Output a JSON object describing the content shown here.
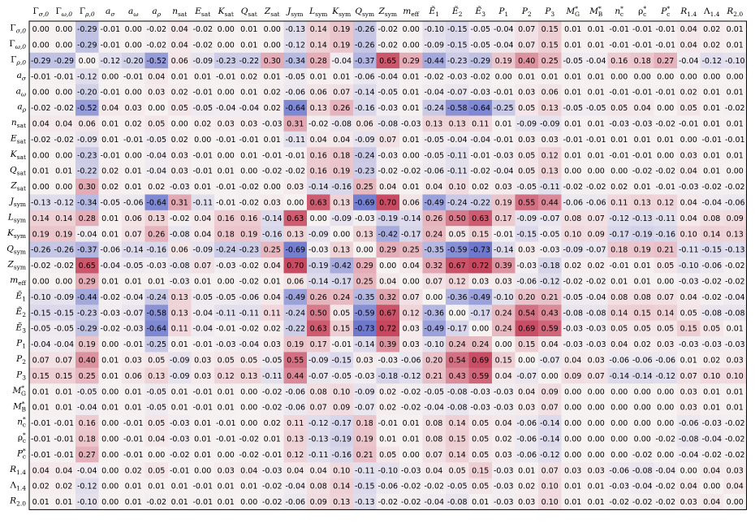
{
  "chart_data": {
    "type": "heatmap",
    "title": "",
    "xlabel": "",
    "ylabel": "",
    "colormap": {
      "negative": "#3b4cc0",
      "zero": "#f7f2f2",
      "positive": "#b40426"
    },
    "value_range": [
      -1,
      1
    ],
    "labels": [
      {
        "base": "Γ",
        "sub": "σ,0"
      },
      {
        "base": "Γ",
        "sub": "ω,0"
      },
      {
        "base": "Γ",
        "sub": "ρ,0"
      },
      {
        "base": "a",
        "sub": "σ"
      },
      {
        "base": "a",
        "sub": "ω"
      },
      {
        "base": "a",
        "sub": "ρ"
      },
      {
        "base": "n",
        "sub": "sat"
      },
      {
        "base": "E",
        "sub": "sat"
      },
      {
        "base": "K",
        "sub": "sat"
      },
      {
        "base": "Q",
        "sub": "sat"
      },
      {
        "base": "Z",
        "sub": "sat"
      },
      {
        "base": "J",
        "sub": "sym"
      },
      {
        "base": "L",
        "sub": "sym"
      },
      {
        "base": "K",
        "sub": "sym"
      },
      {
        "base": "Q",
        "sub": "sym"
      },
      {
        "base": "Z",
        "sub": "sym"
      },
      {
        "base": "m",
        "sub": "eff"
      },
      {
        "base": "Ẽ",
        "sub": "1"
      },
      {
        "base": "Ẽ",
        "sub": "2"
      },
      {
        "base": "Ẽ",
        "sub": "3"
      },
      {
        "base": "P",
        "sub": "1"
      },
      {
        "base": "P",
        "sub": "2"
      },
      {
        "base": "P",
        "sub": "3"
      },
      {
        "base": "M",
        "sub": "G",
        "sup": "*"
      },
      {
        "base": "M",
        "sub": "B",
        "sup": "*"
      },
      {
        "base": "n",
        "sub": "c",
        "sup": "*"
      },
      {
        "base": "ρ",
        "sub": "c",
        "sup": "*"
      },
      {
        "base": "P",
        "sub": "c",
        "sup": "*"
      },
      {
        "base": "R",
        "sub": "1.4"
      },
      {
        "base": "Λ",
        "sub": "1.4"
      },
      {
        "base": "R",
        "sub": "2.0"
      }
    ],
    "matrix": [
      [
        0.0,
        -0.0,
        -0.29,
        -0.01,
        -0.0,
        -0.02,
        0.04,
        -0.02,
        0.0,
        0.01,
        -0.0,
        -0.13,
        0.14,
        0.19,
        -0.26,
        -0.02,
        -0.0,
        -0.1,
        -0.15,
        -0.05,
        -0.04,
        0.07,
        0.15,
        0.01,
        0.01,
        -0.01,
        -0.01,
        -0.01,
        0.04,
        0.02,
        0.01
      ],
      [
        -0.0,
        0.0,
        -0.29,
        -0.01,
        -0.0,
        -0.02,
        0.04,
        -0.02,
        0.0,
        0.01,
        -0.0,
        -0.12,
        0.14,
        0.19,
        -0.26,
        -0.02,
        -0.0,
        -0.09,
        -0.15,
        -0.05,
        -0.04,
        0.07,
        0.15,
        0.01,
        0.01,
        -0.01,
        -0.01,
        -0.01,
        0.04,
        0.02,
        0.01
      ],
      [
        -0.29,
        -0.29,
        0.0,
        -0.12,
        -0.2,
        -0.52,
        0.06,
        -0.09,
        -0.23,
        -0.22,
        0.3,
        -0.34,
        0.28,
        -0.04,
        -0.37,
        0.65,
        0.29,
        -0.44,
        -0.23,
        -0.29,
        0.19,
        0.4,
        0.25,
        -0.05,
        -0.04,
        0.16,
        0.18,
        0.27,
        -0.04,
        -0.12,
        -0.1
      ],
      [
        -0.01,
        -0.01,
        -0.12,
        0.0,
        -0.01,
        0.04,
        0.01,
        0.01,
        -0.01,
        0.02,
        0.01,
        -0.05,
        0.01,
        0.01,
        -0.06,
        -0.04,
        0.01,
        -0.02,
        -0.03,
        -0.02,
        0.0,
        0.01,
        0.01,
        0.01,
        0.01,
        -0.0,
        -0.0,
        -0.0,
        0.0,
        0.0,
        0.0
      ],
      [
        -0.0,
        -0.0,
        -0.2,
        -0.01,
        0.0,
        0.03,
        0.02,
        -0.01,
        -0.0,
        0.01,
        0.02,
        -0.06,
        0.06,
        0.07,
        -0.14,
        -0.05,
        0.01,
        -0.04,
        -0.07,
        -0.03,
        -0.01,
        0.03,
        0.06,
        0.01,
        0.01,
        -0.01,
        -0.01,
        -0.01,
        0.02,
        0.01,
        0.01
      ],
      [
        -0.02,
        -0.02,
        -0.52,
        0.04,
        0.03,
        0.0,
        0.05,
        -0.05,
        -0.04,
        -0.04,
        0.02,
        -0.64,
        0.13,
        0.26,
        -0.16,
        -0.03,
        0.01,
        -0.24,
        -0.58,
        -0.64,
        -0.25,
        0.05,
        0.13,
        -0.05,
        -0.05,
        0.05,
        0.04,
        -0.0,
        0.05,
        0.01,
        -0.02
      ],
      [
        0.04,
        0.04,
        0.06,
        0.01,
        0.02,
        0.05,
        0.0,
        0.02,
        0.03,
        0.03,
        -0.03,
        0.31,
        -0.02,
        -0.08,
        0.06,
        -0.08,
        -0.03,
        0.13,
        0.13,
        0.11,
        0.01,
        -0.09,
        -0.09,
        0.01,
        0.01,
        -0.03,
        -0.03,
        -0.02,
        -0.01,
        0.01,
        0.01
      ],
      [
        -0.02,
        -0.02,
        -0.09,
        0.01,
        -0.01,
        -0.05,
        0.02,
        0.0,
        -0.01,
        -0.01,
        0.01,
        -0.11,
        0.04,
        0.04,
        -0.09,
        0.07,
        0.01,
        -0.05,
        -0.04,
        -0.04,
        -0.01,
        0.03,
        0.03,
        -0.01,
        -0.01,
        0.01,
        0.01,
        0.01,
        -0.0,
        -0.01,
        -0.01
      ],
      [
        0.0,
        0.0,
        -0.23,
        -0.01,
        -0.0,
        -0.04,
        0.03,
        -0.01,
        0.0,
        0.01,
        -0.01,
        -0.01,
        0.16,
        0.18,
        -0.24,
        -0.03,
        -0.0,
        -0.05,
        -0.11,
        -0.01,
        -0.03,
        0.05,
        0.12,
        0.01,
        0.01,
        -0.01,
        -0.01,
        -0.0,
        0.03,
        0.01,
        0.01
      ],
      [
        0.01,
        0.01,
        -0.22,
        0.02,
        0.01,
        -0.04,
        0.03,
        -0.01,
        0.01,
        0.0,
        -0.02,
        -0.02,
        0.16,
        0.19,
        -0.23,
        -0.02,
        -0.02,
        -0.06,
        -0.11,
        -0.02,
        -0.04,
        0.05,
        0.13,
        0.0,
        0.0,
        -0.0,
        -0.02,
        -0.02,
        0.04,
        0.01,
        -0.0
      ],
      [
        -0.0,
        -0.0,
        0.3,
        0.02,
        0.01,
        0.02,
        -0.03,
        0.01,
        -0.01,
        -0.02,
        0.0,
        0.03,
        -0.14,
        -0.16,
        0.25,
        0.04,
        0.01,
        0.04,
        0.1,
        0.02,
        0.03,
        -0.05,
        -0.11,
        -0.02,
        -0.02,
        0.02,
        0.01,
        -0.01,
        -0.03,
        -0.02,
        -0.02
      ],
      [
        -0.13,
        -0.12,
        -0.34,
        -0.05,
        -0.06,
        -0.64,
        0.31,
        -0.11,
        -0.01,
        -0.02,
        0.03,
        0.0,
        0.63,
        0.13,
        -0.69,
        0.7,
        0.06,
        -0.49,
        -0.24,
        -0.22,
        0.19,
        0.55,
        0.44,
        -0.06,
        -0.06,
        0.11,
        0.13,
        0.12,
        0.04,
        -0.04,
        -0.06
      ],
      [
        0.14,
        0.14,
        0.28,
        0.01,
        0.06,
        0.13,
        -0.02,
        0.04,
        0.16,
        0.16,
        -0.14,
        0.63,
        0.0,
        -0.09,
        -0.03,
        -0.19,
        -0.14,
        0.26,
        0.5,
        0.63,
        0.17,
        -0.09,
        -0.07,
        0.08,
        0.07,
        -0.12,
        -0.13,
        -0.11,
        0.04,
        0.08,
        0.09
      ],
      [
        0.19,
        0.19,
        -0.04,
        0.01,
        0.07,
        0.26,
        -0.08,
        0.04,
        0.18,
        0.19,
        -0.16,
        0.13,
        -0.09,
        0.0,
        0.13,
        -0.42,
        -0.17,
        0.24,
        0.05,
        0.15,
        -0.01,
        -0.15,
        -0.05,
        0.1,
        0.09,
        -0.17,
        -0.19,
        -0.16,
        0.1,
        0.14,
        0.13
      ],
      [
        -0.26,
        -0.26,
        -0.37,
        -0.06,
        -0.14,
        -0.16,
        0.06,
        -0.09,
        -0.24,
        -0.23,
        0.25,
        -0.69,
        -0.03,
        0.13,
        0.0,
        0.29,
        0.25,
        -0.35,
        -0.59,
        -0.73,
        -0.14,
        0.03,
        -0.03,
        -0.09,
        -0.07,
        0.18,
        0.19,
        0.21,
        -0.11,
        -0.15,
        -0.13
      ],
      [
        -0.02,
        -0.02,
        0.65,
        -0.04,
        -0.05,
        -0.03,
        -0.08,
        0.07,
        -0.03,
        -0.02,
        0.04,
        0.7,
        -0.19,
        -0.42,
        0.29,
        0.0,
        0.04,
        0.32,
        0.67,
        0.72,
        0.39,
        -0.03,
        -0.18,
        0.02,
        0.02,
        -0.01,
        0.01,
        0.05,
        -0.1,
        -0.06,
        -0.02
      ],
      [
        -0.0,
        -0.0,
        0.29,
        0.01,
        0.01,
        0.01,
        -0.03,
        0.01,
        -0.0,
        -0.02,
        0.01,
        0.06,
        -0.14,
        -0.17,
        0.25,
        0.04,
        0.0,
        0.07,
        0.12,
        0.03,
        0.03,
        -0.06,
        -0.12,
        -0.02,
        -0.02,
        0.01,
        0.01,
        -0.0,
        -0.03,
        -0.02,
        -0.02
      ],
      [
        -0.1,
        -0.09,
        -0.44,
        -0.02,
        -0.04,
        -0.24,
        0.13,
        -0.05,
        -0.05,
        -0.06,
        0.04,
        -0.49,
        0.26,
        0.24,
        -0.35,
        0.32,
        0.07,
        0.0,
        -0.36,
        -0.49,
        -0.1,
        0.2,
        0.21,
        -0.05,
        -0.04,
        0.08,
        0.08,
        0.07,
        0.04,
        -0.02,
        -0.04
      ],
      [
        -0.15,
        -0.15,
        -0.23,
        -0.03,
        -0.07,
        -0.58,
        0.13,
        -0.04,
        -0.11,
        -0.11,
        0.11,
        -0.24,
        0.5,
        0.05,
        -0.59,
        0.67,
        0.12,
        -0.36,
        0.0,
        -0.17,
        0.24,
        0.54,
        0.43,
        -0.08,
        -0.08,
        0.14,
        0.15,
        0.14,
        0.05,
        -0.08,
        -0.08
      ],
      [
        -0.05,
        -0.05,
        -0.29,
        -0.02,
        -0.03,
        -0.64,
        0.11,
        -0.04,
        -0.01,
        -0.02,
        0.02,
        -0.22,
        0.63,
        0.15,
        -0.73,
        0.72,
        0.03,
        -0.49,
        -0.17,
        0.0,
        0.24,
        0.69,
        0.59,
        -0.03,
        -0.03,
        0.05,
        0.05,
        0.05,
        0.15,
        0.05,
        0.01
      ],
      [
        -0.04,
        -0.04,
        0.19,
        0.0,
        -0.01,
        -0.25,
        0.01,
        -0.01,
        -0.03,
        -0.04,
        0.03,
        0.19,
        0.17,
        -0.01,
        -0.14,
        0.39,
        0.03,
        -0.1,
        0.24,
        0.24,
        0.0,
        0.15,
        0.04,
        -0.03,
        -0.03,
        0.04,
        0.02,
        0.03,
        -0.03,
        -0.03,
        -0.03
      ],
      [
        0.07,
        0.07,
        0.4,
        0.01,
        0.03,
        0.05,
        -0.09,
        0.03,
        0.05,
        0.05,
        -0.05,
        0.55,
        -0.09,
        -0.15,
        0.03,
        -0.03,
        -0.06,
        0.2,
        0.54,
        0.69,
        0.15,
        0.0,
        -0.07,
        0.04,
        0.03,
        -0.06,
        -0.06,
        -0.06,
        0.01,
        0.02,
        0.03
      ],
      [
        0.15,
        0.15,
        0.25,
        0.01,
        0.06,
        0.13,
        -0.09,
        0.03,
        0.12,
        0.13,
        -0.11,
        0.44,
        -0.07,
        -0.05,
        -0.03,
        -0.18,
        -0.12,
        0.21,
        0.43,
        0.59,
        0.04,
        -0.07,
        0.0,
        0.09,
        0.07,
        -0.14,
        -0.14,
        -0.12,
        0.07,
        0.1,
        0.1
      ],
      [
        0.01,
        0.01,
        -0.05,
        0.0,
        0.01,
        -0.05,
        0.01,
        -0.01,
        0.01,
        0.0,
        -0.02,
        -0.06,
        0.08,
        0.1,
        -0.09,
        0.02,
        -0.02,
        -0.05,
        -0.08,
        -0.03,
        -0.03,
        0.04,
        0.09,
        0.0,
        -0.0,
        -0.0,
        -0.0,
        -0.0,
        0.03,
        0.01,
        0.01
      ],
      [
        0.01,
        0.01,
        -0.04,
        0.01,
        0.01,
        -0.05,
        0.01,
        -0.01,
        0.01,
        0.0,
        -0.02,
        -0.06,
        0.07,
        0.09,
        -0.07,
        0.02,
        -0.02,
        -0.04,
        -0.08,
        -0.03,
        -0.03,
        0.03,
        0.07,
        -0.0,
        0.0,
        -0.0,
        -0.0,
        -0.0,
        0.03,
        0.01,
        0.01
      ],
      [
        -0.01,
        -0.01,
        0.16,
        -0.0,
        -0.01,
        0.05,
        -0.03,
        0.01,
        -0.01,
        -0.0,
        0.02,
        0.11,
        -0.12,
        -0.17,
        0.18,
        -0.01,
        0.01,
        0.08,
        0.14,
        0.05,
        0.04,
        -0.06,
        -0.14,
        -0.0,
        -0.0,
        0.0,
        -0.0,
        -0.0,
        -0.06,
        -0.03,
        -0.02
      ],
      [
        -0.01,
        -0.01,
        0.18,
        -0.0,
        -0.01,
        0.04,
        -0.03,
        0.01,
        -0.01,
        -0.02,
        0.01,
        0.13,
        -0.13,
        -0.19,
        0.19,
        0.01,
        0.01,
        0.08,
        0.15,
        0.05,
        0.02,
        -0.06,
        -0.14,
        -0.0,
        -0.0,
        -0.0,
        0.0,
        -0.02,
        -0.08,
        -0.04,
        -0.02
      ],
      [
        -0.01,
        -0.01,
        0.27,
        -0.0,
        -0.01,
        -0.0,
        -0.02,
        0.01,
        -0.0,
        -0.02,
        -0.01,
        0.12,
        -0.11,
        -0.16,
        0.21,
        0.05,
        -0.0,
        0.07,
        0.14,
        0.05,
        0.03,
        -0.06,
        -0.12,
        -0.0,
        -0.0,
        -0.0,
        -0.02,
        0.0,
        -0.04,
        -0.02,
        -0.02
      ],
      [
        0.04,
        0.04,
        -0.04,
        0.0,
        0.02,
        0.05,
        -0.01,
        -0.0,
        0.03,
        0.04,
        -0.03,
        0.04,
        0.04,
        0.1,
        -0.11,
        -0.1,
        -0.03,
        0.04,
        0.05,
        0.15,
        -0.03,
        0.01,
        0.07,
        0.03,
        0.03,
        -0.06,
        -0.08,
        -0.04,
        0.0,
        0.04,
        0.03
      ],
      [
        0.02,
        0.02,
        -0.12,
        0.0,
        0.01,
        0.01,
        0.01,
        -0.01,
        0.01,
        0.01,
        -0.02,
        -0.04,
        0.08,
        0.14,
        -0.15,
        -0.06,
        -0.02,
        -0.02,
        -0.05,
        0.05,
        -0.03,
        0.02,
        0.1,
        0.01,
        0.01,
        -0.03,
        -0.04,
        -0.02,
        0.04,
        0.0,
        0.04
      ],
      [
        0.01,
        0.01,
        -0.1,
        0.0,
        0.01,
        -0.02,
        0.01,
        -0.01,
        0.01,
        -0.0,
        -0.02,
        -0.06,
        0.09,
        0.13,
        -0.13,
        -0.02,
        -0.02,
        -0.04,
        -0.08,
        0.01,
        -0.03,
        0.03,
        0.1,
        0.01,
        0.01,
        -0.02,
        -0.02,
        -0.02,
        0.03,
        0.04,
        0.0
      ]
    ]
  }
}
